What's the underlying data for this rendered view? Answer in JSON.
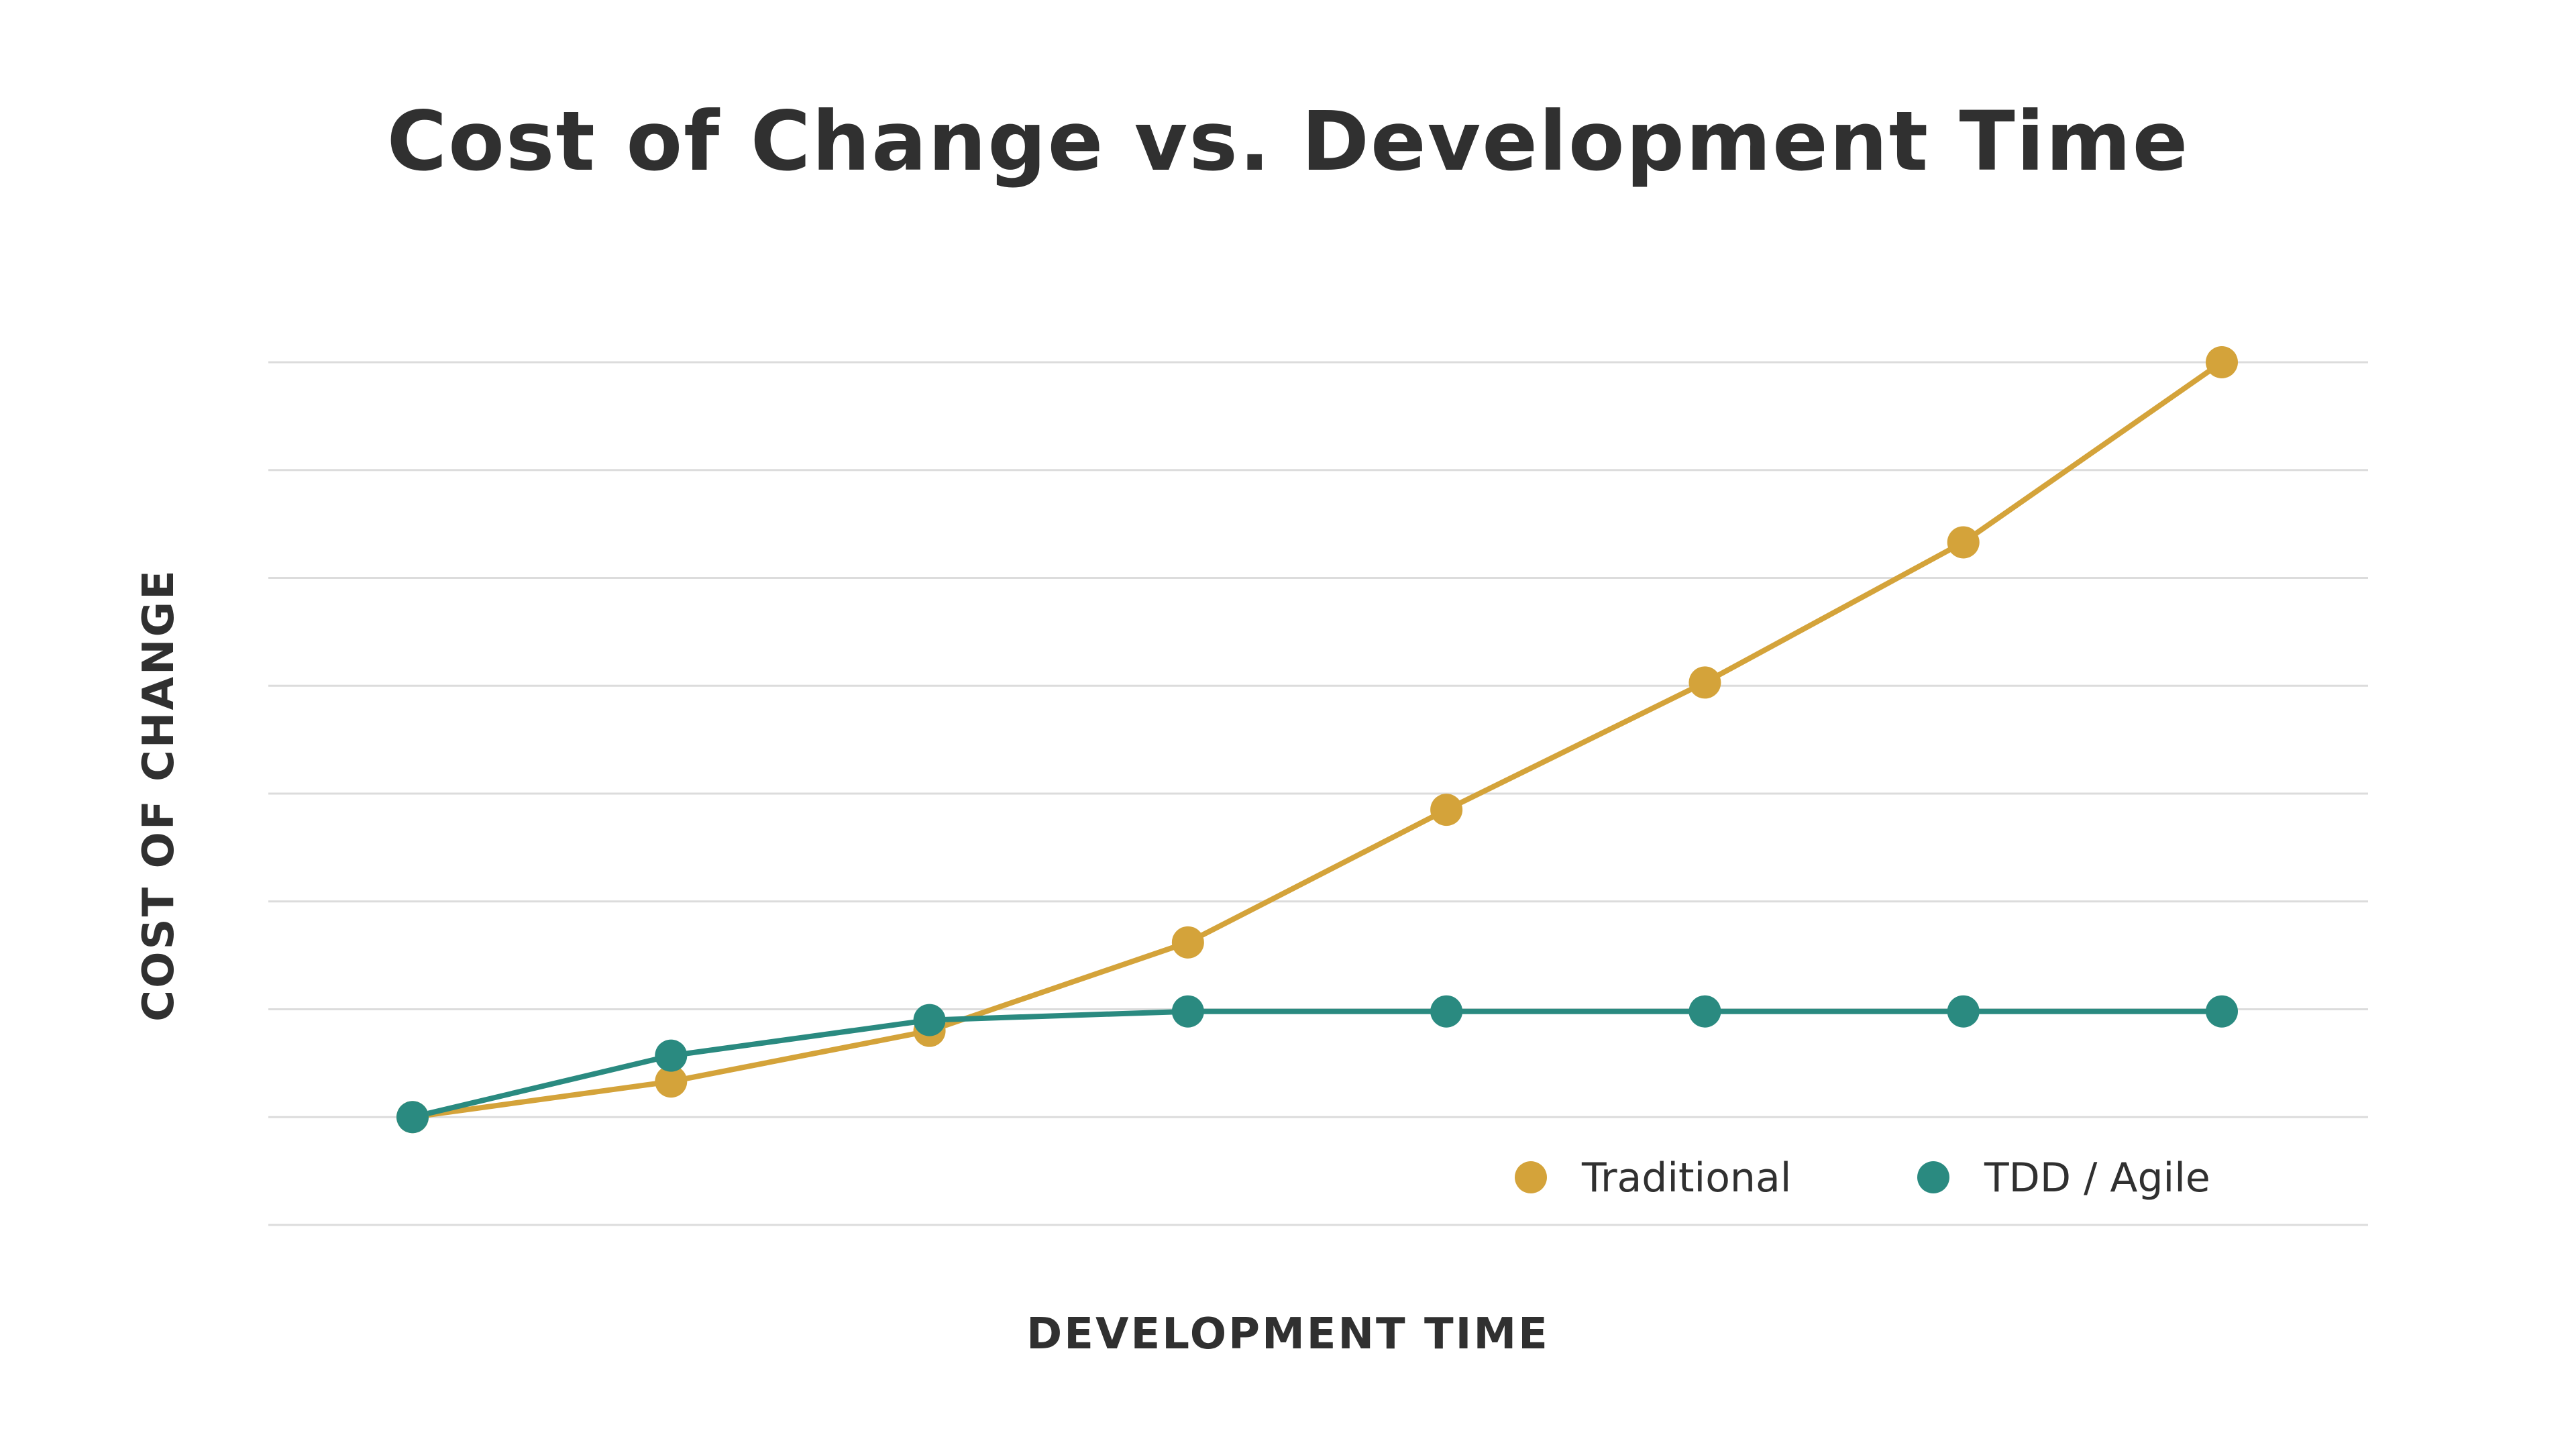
{
  "chart_data": {
    "type": "line",
    "title": "Cost of Change vs. Development Time",
    "xlabel": "DEVELOPMENT TIME",
    "ylabel": "COST OF CHANGE",
    "x": [
      1,
      2,
      3,
      4,
      5,
      6,
      7,
      8
    ],
    "ylim": [
      0,
      8
    ],
    "grid": true,
    "legend_position": "bottom-right",
    "series": [
      {
        "name": "Traditional",
        "color": "#d4a33a",
        "values": [
          1.0,
          1.33,
          1.8,
          2.62,
          3.85,
          5.03,
          6.33,
          8.0
        ]
      },
      {
        "name": "TDD / Agile",
        "color": "#2a8a80",
        "values": [
          1.0,
          1.57,
          1.9,
          1.98,
          1.98,
          1.98,
          1.98,
          1.98
        ]
      }
    ]
  }
}
